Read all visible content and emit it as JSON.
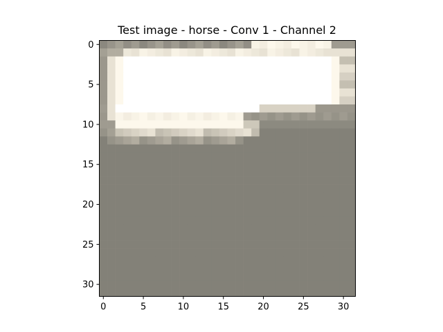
{
  "chart_data": {
    "type": "heatmap",
    "title": "Test image - horse - Conv 1 - Channel 2",
    "xlabel": "",
    "ylabel": "",
    "xlim": [
      -0.5,
      31.5
    ],
    "ylim": [
      31.5,
      -0.5
    ],
    "x_ticks": [
      0,
      5,
      10,
      15,
      20,
      25,
      30
    ],
    "y_ticks": [
      0,
      5,
      10,
      15,
      20,
      25,
      30
    ],
    "grid": false,
    "rows": 32,
    "cols": 32,
    "colors": {
      "background": "#838178",
      "white": "#ffffff",
      "cream": "#fdf8ec",
      "light": "#e8e2d4",
      "mid": "#b2ada0",
      "dark_top": "#8b887f"
    }
  }
}
